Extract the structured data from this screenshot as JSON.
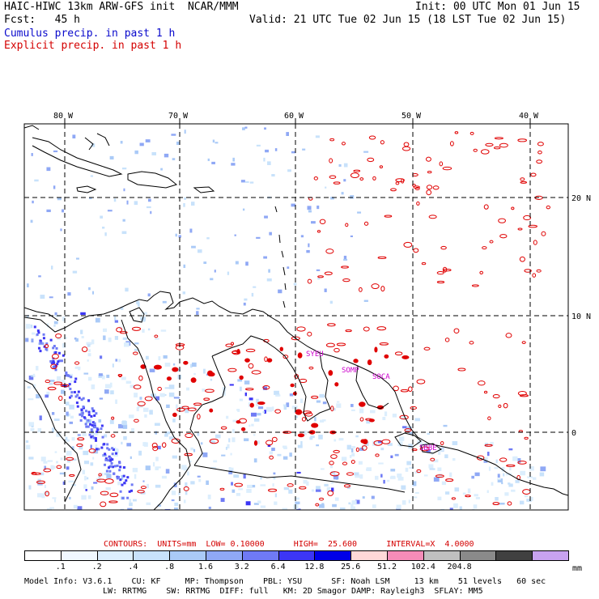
{
  "header": {
    "title": "HAIC-HIWC 13km ARW-GFS init  NCAR/MMM",
    "init": "Init: 00 UTC Mon 01 Jun 15",
    "fcst": "Fcst:   45 h",
    "valid": "Valid: 21 UTC Tue 02 Jun 15 (18 LST Tue 02 Jun 15)",
    "legend_cumulus": "Cumulus precip. in past 1 h",
    "legend_explicit": "Explicit precip. in past 1 h"
  },
  "map": {
    "lon_labels": [
      "80 W",
      "70 W",
      "60 W",
      "50 W",
      "40 W"
    ],
    "lat_labels": [
      "20 N",
      "10 N",
      "0"
    ],
    "stations": [
      "SYEU",
      "SOMP",
      "SOCA",
      "SBBE"
    ],
    "colors": {
      "coast": "#000000",
      "grid": "#000000",
      "cumulus": "#3344ee",
      "explicit": "#e00000"
    }
  },
  "contours": {
    "label": "CONTOURS:  UNITS=mm  LOW= 0.10000      HIGH=  25.600      INTERVAL=X  4.0000"
  },
  "colorbar": {
    "unit": "mm",
    "ticks": [
      ".1",
      ".2",
      ".4",
      ".8",
      "1.6",
      "3.2",
      "6.4",
      "12.8",
      "25.6",
      "51.2",
      "102.4",
      "204.8"
    ],
    "colors": [
      "#ffffff",
      "#f0f8ff",
      "#dceefd",
      "#c8e2fb",
      "#aacaf7",
      "#8fa8f5",
      "#6f7af5",
      "#3c36f5",
      "#0000e8",
      "#ffd8d8",
      "#f58cb8",
      "#c0c0c0",
      "#8a8a8a",
      "#404040",
      "#c8a2f0"
    ]
  },
  "model_info": {
    "line1": "Model Info: V3.6.1    CU: KF     MP: Thompson    PBL: YSU      SF: Noah LSM     13 km    51 levels   60 sec",
    "line2": "LW: RRTMG    SW: RRTMG  DIFF: full   KM: 2D Smagor DAMP: Rayleigh3  SFLAY: MM5"
  }
}
